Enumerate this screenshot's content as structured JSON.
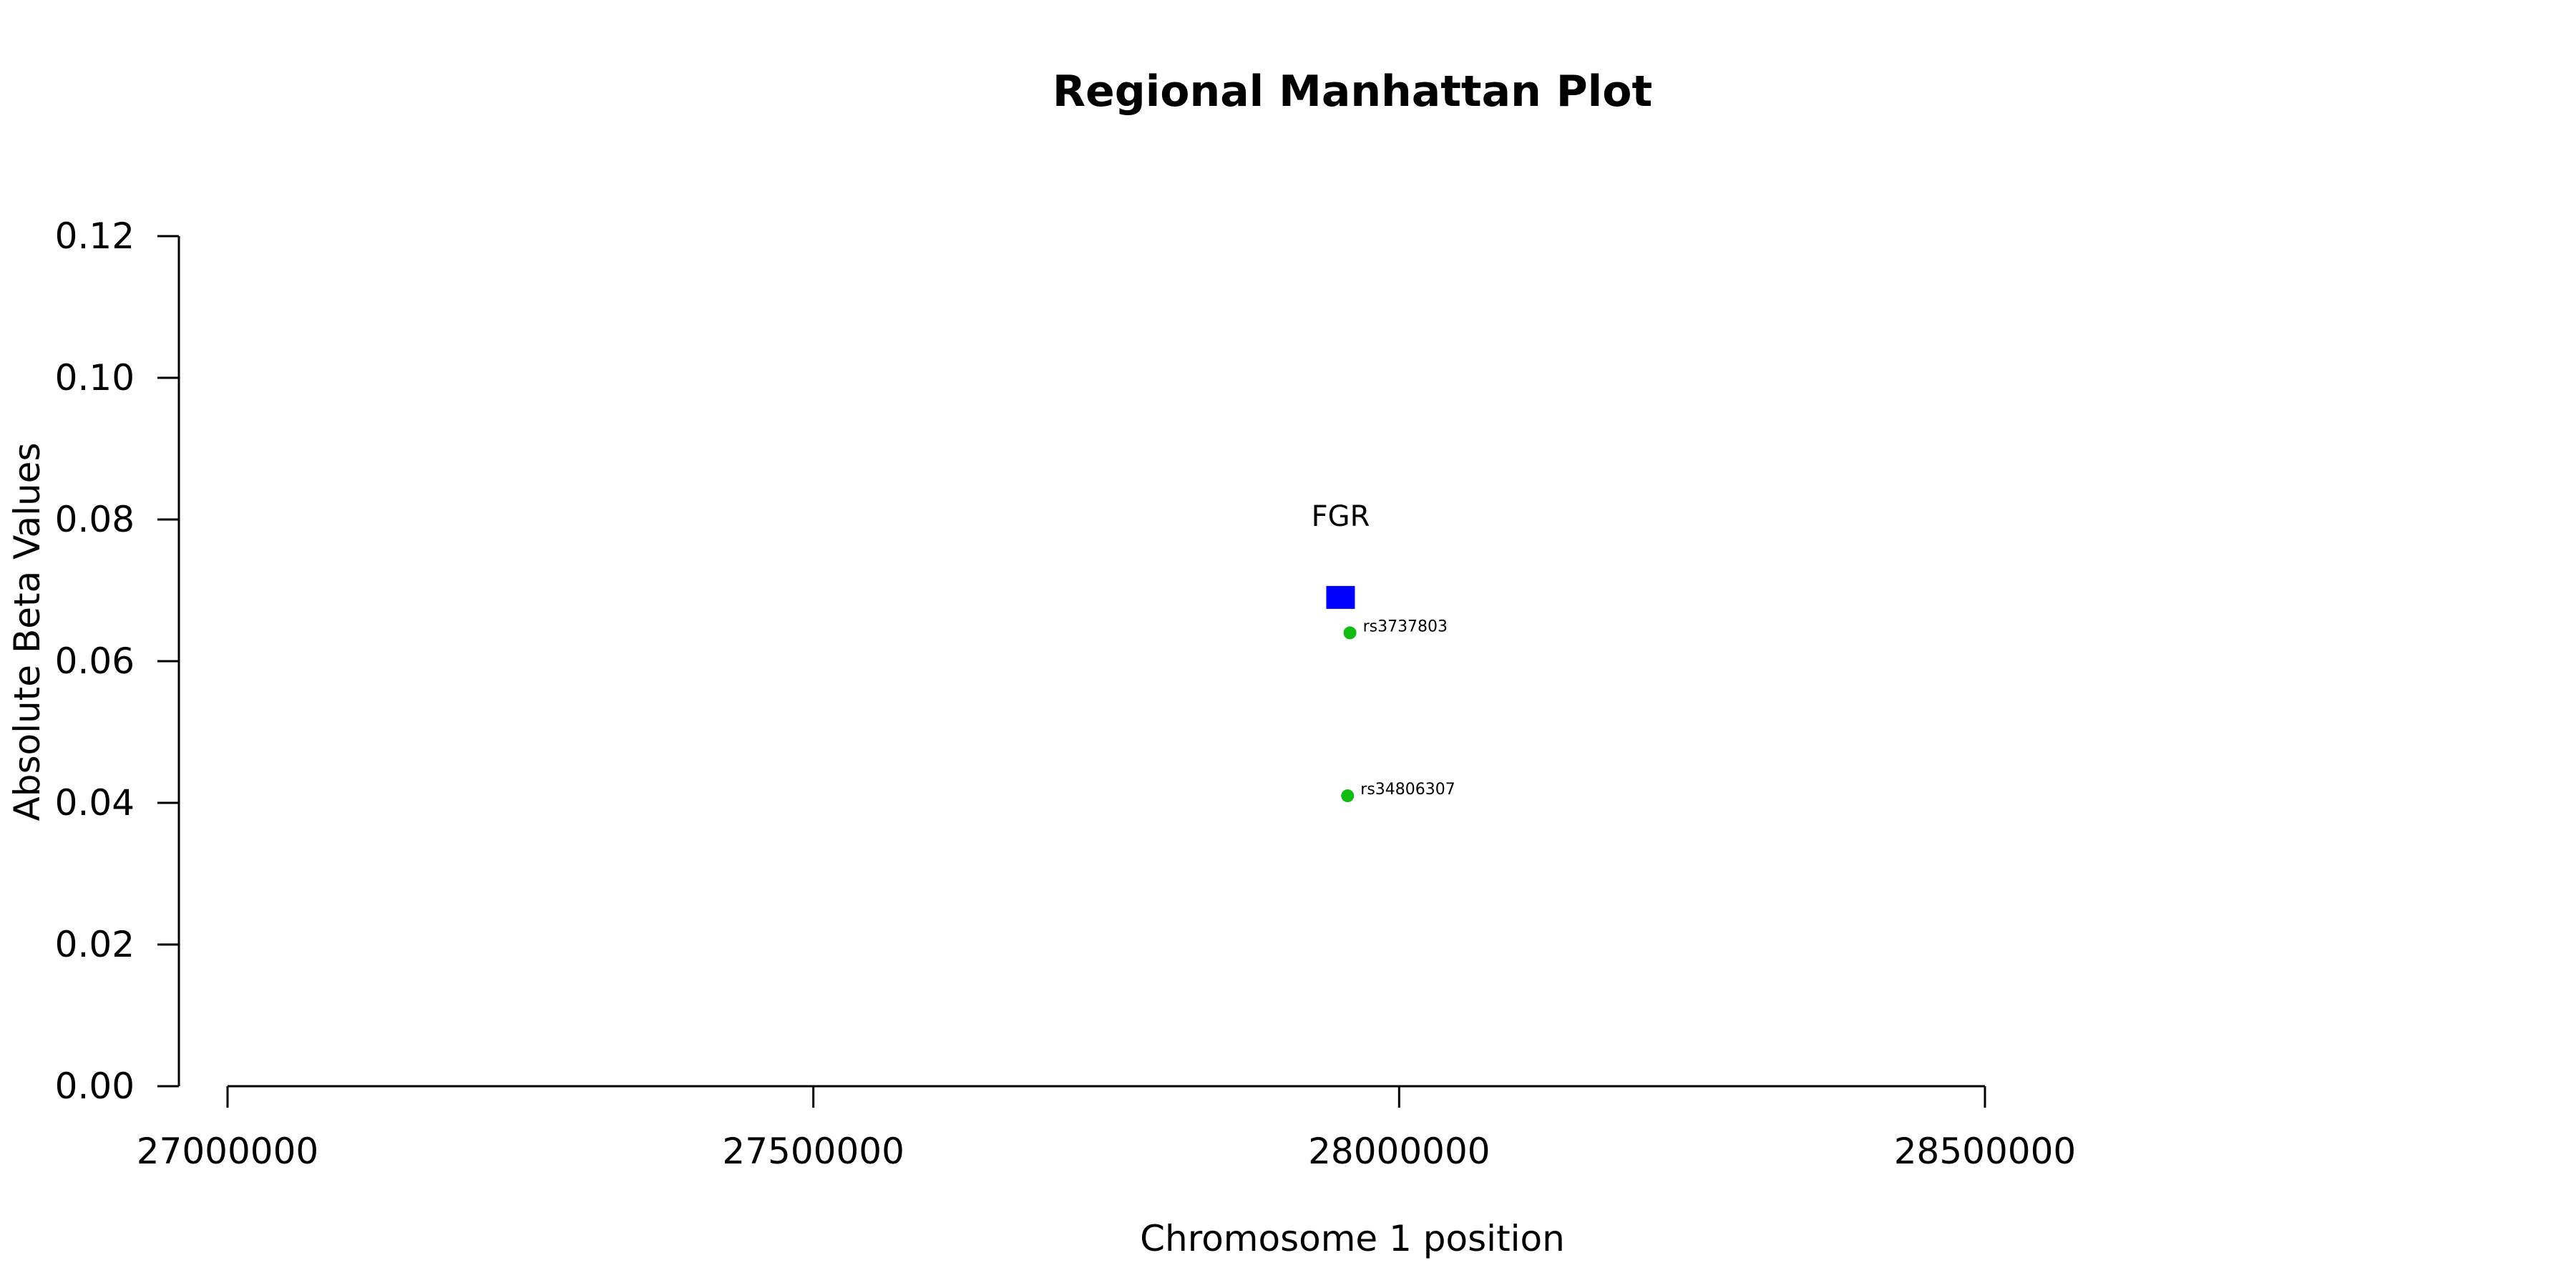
{
  "chart_data": {
    "type": "scatter",
    "title": "Regional Manhattan Plot",
    "xlabel": "Chromosome 1 position",
    "ylabel": "Absolute Beta Values",
    "xlim": [
      27000000,
      28500000
    ],
    "ylim": [
      0,
      0.12
    ],
    "xticks": [
      "27000000",
      "27500000",
      "28000000",
      "28500000"
    ],
    "yticks": [
      "0.00",
      "0.02",
      "0.04",
      "0.06",
      "0.08",
      "0.10",
      "0.12"
    ],
    "grid": false,
    "genes": [
      {
        "label": "FGR",
        "x": 27950000,
        "y": 0.069,
        "color": "#0000ff",
        "marker": "square"
      }
    ],
    "snps": [
      {
        "label": "rs3737803",
        "x": 27958000,
        "y": 0.064,
        "color": "#11bb11"
      },
      {
        "label": "rs34806307",
        "x": 27956000,
        "y": 0.041,
        "color": "#11bb11"
      }
    ]
  }
}
